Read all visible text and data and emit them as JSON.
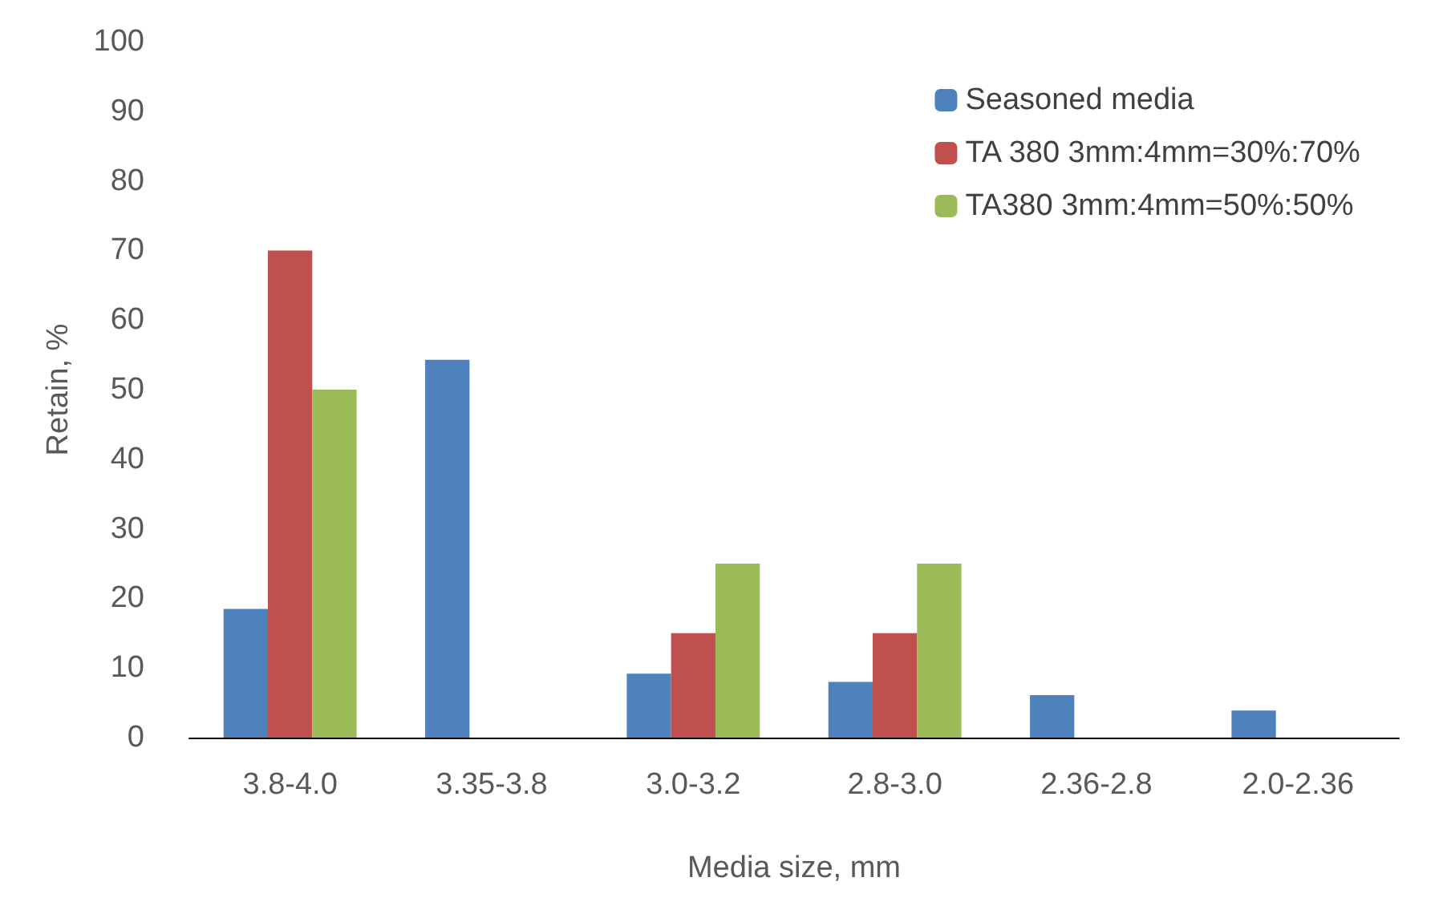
{
  "chart_data": {
    "type": "bar",
    "xlabel": "Media size, mm",
    "ylabel": "Retain, %",
    "categories": [
      "3.8-4.0",
      "3.35-3.8",
      "3.0-3.2",
      "2.8-3.0",
      "2.36-2.8",
      "2.0-2.36"
    ],
    "series": [
      {
        "name": "Seasoned media",
        "color": "#4f81bd",
        "values": [
          18.5,
          54.3,
          9.2,
          8,
          6.1,
          3.9
        ]
      },
      {
        "name": "TA 380 3mm:4mm=30%:70%",
        "color": "#c0504d",
        "values": [
          70,
          0,
          15,
          15,
          0,
          0
        ]
      },
      {
        "name": "TA380 3mm:4mm=50%:50%",
        "color": "#9bbb59",
        "values": [
          50,
          0,
          25,
          25,
          0,
          0
        ]
      }
    ],
    "ylim": [
      0,
      100
    ],
    "yticks": [
      0,
      10,
      20,
      30,
      40,
      50,
      60,
      70,
      80,
      90,
      100
    ],
    "grid": false,
    "legend": "top right"
  }
}
